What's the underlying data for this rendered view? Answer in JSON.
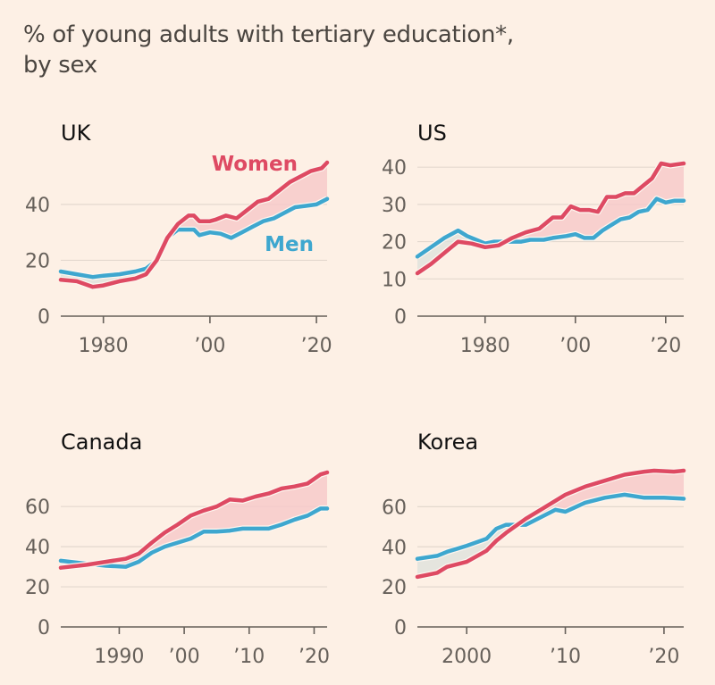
{
  "title_line1": "% of young adults with tertiary education*,",
  "title_line2": "by sex",
  "colors": {
    "women": "#de4a63",
    "men": "#3ea7cf",
    "gap_fill": "#f7caca",
    "reverse_gap_fill": "#dfe2dc",
    "background": "#fdf0e5",
    "grid": "#e3d8ce",
    "axis": "#66605a"
  },
  "chart_data": [
    {
      "type": "line",
      "title": "UK",
      "xlim": [
        1972,
        2022
      ],
      "ylim": [
        0,
        55
      ],
      "x_ticks": [
        {
          "value": 1980,
          "label": "1980"
        },
        {
          "value": 2000,
          "label": "’00"
        },
        {
          "value": 2020,
          "label": "’20"
        }
      ],
      "y_ticks": [
        0,
        20,
        40
      ],
      "grid": true,
      "series_labels": {
        "women": "Women",
        "men": "Men"
      },
      "series": [
        {
          "name": "Women",
          "x": [
            1972,
            1975,
            1978,
            1980,
            1983,
            1986,
            1988,
            1990,
            1992,
            1994,
            1996,
            1997,
            1998,
            2000,
            2001,
            2003,
            2005,
            2007,
            2009,
            2011,
            2013,
            2015,
            2017,
            2019,
            2021,
            2022
          ],
          "values": [
            13,
            12.5,
            10.5,
            11,
            12.5,
            13.5,
            15,
            20,
            28,
            33,
            36,
            36,
            34,
            34,
            34.5,
            36,
            35,
            38,
            41,
            42,
            45,
            48,
            50,
            52,
            53,
            55
          ]
        },
        {
          "name": "Men",
          "x": [
            1972,
            1975,
            1978,
            1980,
            1983,
            1986,
            1988,
            1990,
            1992,
            1994,
            1995,
            1997,
            1998,
            2000,
            2002,
            2004,
            2006,
            2008,
            2010,
            2012,
            2014,
            2016,
            2018,
            2020,
            2022
          ],
          "values": [
            16,
            15,
            14,
            14.5,
            15,
            16,
            17,
            20,
            28,
            31,
            31,
            31,
            29,
            30,
            29.5,
            28,
            30,
            32,
            34,
            35,
            37,
            39,
            39.5,
            40,
            42
          ]
        }
      ]
    },
    {
      "type": "line",
      "title": "US",
      "xlim": [
        1965,
        2024
      ],
      "ylim": [
        0,
        41
      ],
      "x_ticks": [
        {
          "value": 1980,
          "label": "1980"
        },
        {
          "value": 2000,
          "label": "’00"
        },
        {
          "value": 2020,
          "label": "’20"
        }
      ],
      "y_ticks": [
        0,
        10,
        20,
        30,
        40
      ],
      "grid": true,
      "series": [
        {
          "name": "Women",
          "x": [
            1965,
            1968,
            1971,
            1974,
            1977,
            1980,
            1983,
            1986,
            1989,
            1992,
            1995,
            1997,
            1999,
            2001,
            2003,
            2005,
            2007,
            2009,
            2011,
            2013,
            2015,
            2017,
            2019,
            2021,
            2024
          ],
          "values": [
            11.5,
            14,
            17,
            20,
            19.5,
            18.5,
            19,
            21,
            22.5,
            23.5,
            26.5,
            26.5,
            29.5,
            28.5,
            28.5,
            28,
            32,
            32,
            33,
            33,
            35,
            37,
            41,
            40.5,
            41
          ]
        },
        {
          "name": "Men",
          "x": [
            1965,
            1968,
            1971,
            1974,
            1976,
            1978,
            1980,
            1982,
            1985,
            1988,
            1990,
            1993,
            1995,
            1998,
            2000,
            2002,
            2004,
            2006,
            2008,
            2010,
            2012,
            2014,
            2016,
            2018,
            2020,
            2022,
            2024
          ],
          "values": [
            16,
            18.5,
            21,
            23,
            21.5,
            20.5,
            19.5,
            20,
            20,
            20,
            20.5,
            20.5,
            21,
            21.5,
            22,
            21,
            21,
            23,
            24.5,
            26,
            26.5,
            28,
            28.5,
            31.5,
            30.5,
            31,
            31
          ]
        }
      ]
    },
    {
      "type": "line",
      "title": "Canada",
      "xlim": [
        1981,
        2022
      ],
      "ylim": [
        0,
        77
      ],
      "x_ticks": [
        {
          "value": 1990,
          "label": "1990"
        },
        {
          "value": 2000,
          "label": "’00"
        },
        {
          "value": 2010,
          "label": "’10"
        },
        {
          "value": 2020,
          "label": "’20"
        }
      ],
      "y_ticks": [
        0,
        20,
        40,
        60
      ],
      "grid": true,
      "series": [
        {
          "name": "Women",
          "x": [
            1981,
            1985,
            1988,
            1991,
            1993,
            1995,
            1997,
            1999,
            2001,
            2003,
            2005,
            2007,
            2009,
            2011,
            2013,
            2015,
            2017,
            2019,
            2021,
            2022
          ],
          "values": [
            29.5,
            31,
            32.5,
            34,
            36.5,
            42,
            47,
            51,
            55.5,
            58,
            60,
            63.5,
            63,
            65,
            66.5,
            69,
            70,
            71.5,
            76,
            77
          ]
        },
        {
          "name": "Men",
          "x": [
            1981,
            1985,
            1988,
            1991,
            1993,
            1995,
            1997,
            1999,
            2001,
            2003,
            2005,
            2007,
            2009,
            2011,
            2013,
            2015,
            2017,
            2019,
            2021,
            2022
          ],
          "values": [
            33,
            31.5,
            30.5,
            30,
            32.5,
            37,
            40,
            42,
            44,
            47.5,
            47.5,
            48,
            49,
            49,
            49,
            51,
            53.5,
            55.5,
            59,
            59
          ]
        }
      ]
    },
    {
      "type": "line",
      "title": "Korea",
      "xlim": [
        1995,
        2022
      ],
      "ylim": [
        0,
        78
      ],
      "x_ticks": [
        {
          "value": 2000,
          "label": "2000"
        },
        {
          "value": 2010,
          "label": "’10"
        },
        {
          "value": 2020,
          "label": "’20"
        }
      ],
      "y_ticks": [
        0,
        20,
        40,
        60
      ],
      "grid": true,
      "series": [
        {
          "name": "Women",
          "x": [
            1995,
            1997,
            1998,
            2000,
            2002,
            2003,
            2004,
            2006,
            2008,
            2010,
            2012,
            2014,
            2016,
            2018,
            2019,
            2021,
            2022
          ],
          "values": [
            25,
            27,
            30,
            32.5,
            38,
            43,
            47,
            54,
            60,
            66,
            70,
            73,
            76,
            77.5,
            78,
            77.5,
            78
          ]
        },
        {
          "name": "Men",
          "x": [
            1995,
            1997,
            1998,
            2000,
            2002,
            2003,
            2004,
            2005,
            2006,
            2008,
            2009,
            2010,
            2012,
            2014,
            2016,
            2018,
            2020,
            2022
          ],
          "values": [
            34,
            35.5,
            37.5,
            40.5,
            44,
            49,
            51,
            51,
            51,
            56,
            58.5,
            57.5,
            62,
            64.5,
            66,
            64.5,
            64.5,
            64
          ]
        }
      ]
    }
  ]
}
